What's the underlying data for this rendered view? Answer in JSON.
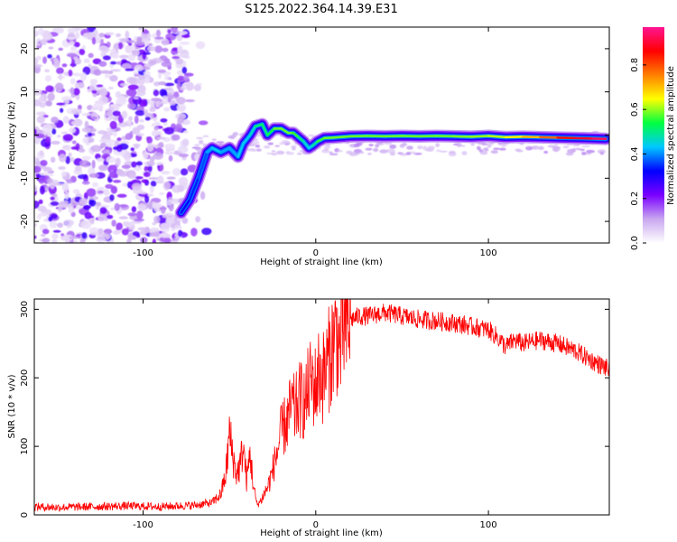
{
  "figure": {
    "title": "S125.2022.364.14.39.E31"
  },
  "chart_data": [
    {
      "type": "heatmap",
      "xlabel": "Height of straight line (km)",
      "ylabel": "Frequency (Hz)",
      "xlim": [
        -163,
        170
      ],
      "ylim": [
        -25,
        25
      ],
      "xticks": [
        -100,
        0,
        100
      ],
      "xtick_labels": [
        "-100",
        "0",
        "100"
      ],
      "yticks": [
        -20,
        -10,
        0,
        10,
        20
      ],
      "ytick_labels": [
        "-20",
        "-10",
        "0",
        "10",
        "20"
      ],
      "colorbar": {
        "label": "Normalized spectral amplitude",
        "range": [
          0,
          0.97
        ],
        "ticks": [
          0.0,
          0.2,
          0.4,
          0.6,
          0.8
        ],
        "tick_labels": [
          "0.0",
          "0.2",
          "0.4",
          "0.6",
          "0.8"
        ],
        "colors": [
          "#ffffff",
          "#c9a7f0",
          "#7a00ff",
          "#0000ff",
          "#00c8ff",
          "#00ff40",
          "#ffff00",
          "#ff8000",
          "#ff0000",
          "#ff1493"
        ]
      },
      "ridge": {
        "x": [
          -78,
          -73,
          -68,
          -63,
          -60,
          -55,
          -50,
          -45,
          -42,
          -38,
          -35,
          -31,
          -28,
          -24,
          -20,
          -16,
          -13,
          -10,
          -7,
          -4,
          -2,
          1,
          5,
          10,
          20,
          30,
          40,
          50,
          60,
          70,
          80,
          90,
          100,
          110,
          120,
          130,
          140,
          150,
          160,
          168
        ],
        "y": [
          -18,
          -15,
          -10,
          -4,
          -3,
          -4,
          -3,
          -5,
          -2,
          0,
          2,
          2.5,
          0,
          1.5,
          1.5,
          0.5,
          0.5,
          -0.5,
          -1.5,
          -3,
          -2.5,
          -1.5,
          -0.7,
          -0.6,
          -0.3,
          -0.2,
          -0.3,
          -0.2,
          -0.3,
          -0.2,
          -0.3,
          -0.4,
          -0.2,
          -0.5,
          -0.4,
          -0.5,
          -0.6,
          -0.7,
          -0.8,
          -0.9
        ],
        "amplitude": [
          0.3,
          0.35,
          0.35,
          0.4,
          0.45,
          0.45,
          0.4,
          0.45,
          0.45,
          0.45,
          0.5,
          0.55,
          0.5,
          0.6,
          0.6,
          0.6,
          0.6,
          0.55,
          0.5,
          0.45,
          0.45,
          0.55,
          0.6,
          0.6,
          0.6,
          0.6,
          0.6,
          0.6,
          0.6,
          0.6,
          0.6,
          0.62,
          0.62,
          0.65,
          0.7,
          0.75,
          0.85,
          0.9,
          0.95,
          0.97
        ]
      },
      "noise_x_range": [
        -163,
        -75
      ]
    },
    {
      "type": "line",
      "xlabel": "Height of straight line (km)",
      "ylabel": "SNR (10 * v/v)",
      "xlim": [
        -163,
        170
      ],
      "ylim": [
        0,
        315
      ],
      "xticks": [
        -100,
        0,
        100
      ],
      "xtick_labels": [
        "-100",
        "0",
        "100"
      ],
      "yticks": [
        0,
        100,
        200,
        300
      ],
      "ytick_labels": [
        "0",
        "100",
        "200",
        "300"
      ],
      "series": [
        {
          "color": "#ff0000",
          "x": [
            -163,
            -150,
            -130,
            -110,
            -90,
            -70,
            -60,
            -55,
            -52,
            -50,
            -48,
            -46,
            -44,
            -42,
            -40,
            -38,
            -36,
            -34,
            -32,
            -30,
            -28,
            -26,
            -24,
            -22,
            -20,
            -18,
            -16,
            -14,
            -12,
            -10,
            -8,
            -6,
            -4,
            -2,
            0,
            2,
            4,
            6,
            8,
            10,
            12,
            14,
            16,
            18,
            20,
            25,
            30,
            40,
            50,
            60,
            70,
            80,
            90,
            100,
            105,
            110,
            115,
            120,
            130,
            140,
            150,
            160,
            170
          ],
          "y": [
            12,
            11,
            12,
            13,
            12,
            14,
            18,
            30,
            60,
            120,
            85,
            60,
            70,
            100,
            50,
            90,
            40,
            15,
            20,
            30,
            40,
            55,
            75,
            95,
            120,
            130,
            140,
            160,
            150,
            165,
            170,
            160,
            190,
            195,
            185,
            210,
            200,
            215,
            230,
            250,
            265,
            240,
            275,
            270,
            285,
            290,
            290,
            295,
            290,
            285,
            283,
            280,
            275,
            270,
            260,
            245,
            255,
            250,
            255,
            250,
            240,
            225,
            212
          ]
        }
      ]
    }
  ]
}
